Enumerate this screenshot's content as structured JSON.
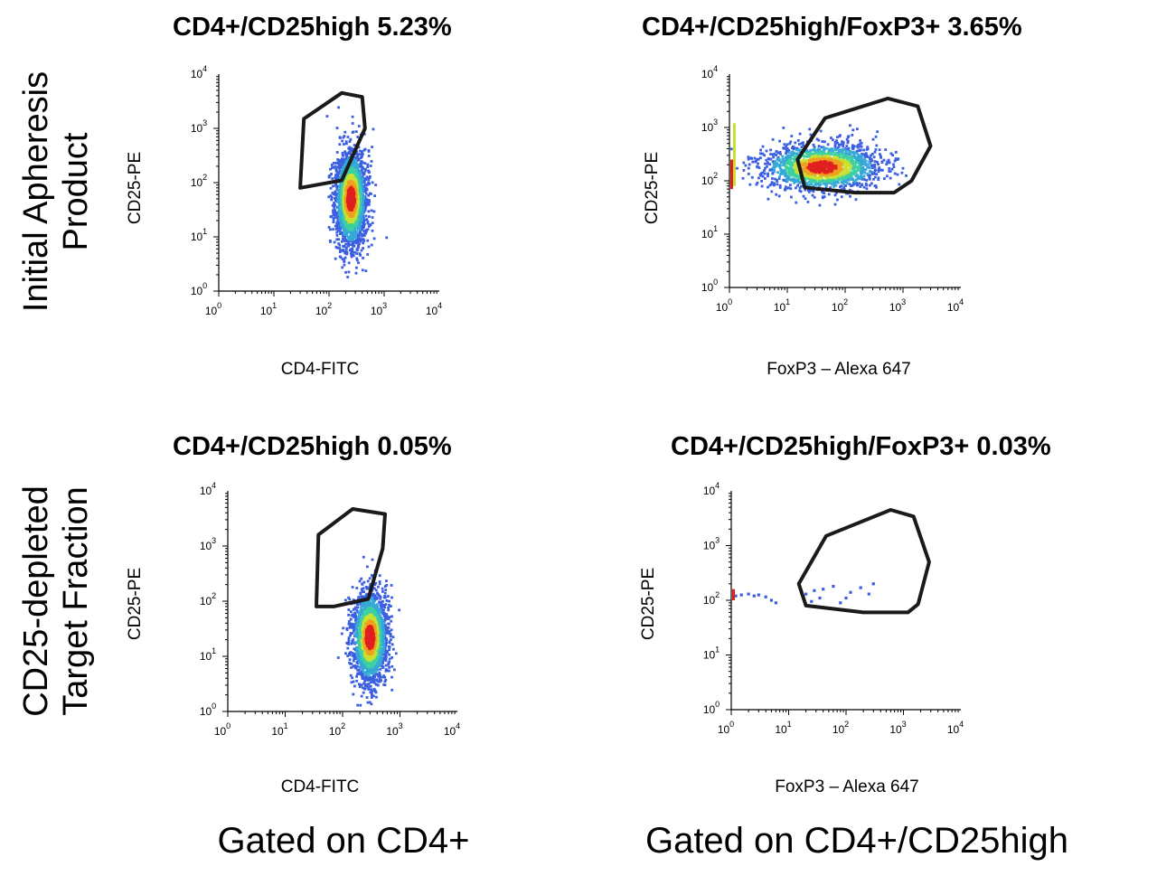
{
  "row_labels": [
    {
      "lines": [
        "Initial Apheresis",
        "Product"
      ]
    },
    {
      "lines": [
        "CD25-depleted",
        "Target Fraction"
      ]
    }
  ],
  "column_labels": [
    "Gated on CD4+",
    "Gated on CD4+/CD25high"
  ],
  "colors": {
    "gate": "#1a1a1a",
    "density": [
      "#3b5fe0",
      "#36a8d8",
      "#3ed0a0",
      "#c8e030",
      "#f0a020",
      "#e02020"
    ]
  },
  "chart_data": [
    {
      "id": "p1",
      "type": "scatter",
      "subtype": "flow-cytometry-density",
      "title": "CD4+/CD25high  5.23%",
      "xlabel": "CD4-FITC",
      "ylabel": "CD25-PE",
      "xscale": "log",
      "yscale": "log",
      "xlim": [
        1,
        10000
      ],
      "ylim": [
        1,
        10000
      ],
      "tick_labels": [
        "10^0",
        "10^1",
        "10^2",
        "10^3",
        "10^4"
      ],
      "population": {
        "center": [
          250,
          50
        ],
        "log_spread": [
          0.14,
          0.45
        ],
        "count": 2300
      },
      "gate": {
        "name": "CD4+/CD25high",
        "percent": 5.23,
        "vertices": [
          [
            30,
            80
          ],
          [
            35,
            1500
          ],
          [
            170,
            4500
          ],
          [
            400,
            3800
          ],
          [
            450,
            1000
          ],
          [
            170,
            110
          ]
        ]
      }
    },
    {
      "id": "p2",
      "type": "scatter",
      "subtype": "flow-cytometry-density",
      "title": "CD4+/CD25high/FoxP3+  3.65%",
      "xlabel": "FoxP3 – Alexa 647",
      "ylabel": "CD25-PE",
      "xscale": "log",
      "yscale": "log",
      "xlim": [
        1,
        10000
      ],
      "ylim": [
        1,
        10000
      ],
      "tick_labels": [
        "10^0",
        "10^1",
        "10^2",
        "10^3",
        "10^4"
      ],
      "population": {
        "center": [
          40,
          180
        ],
        "log_spread": [
          0.5,
          0.22
        ],
        "count": 1700
      },
      "gate": {
        "name": "FoxP3+",
        "percent": 3.65,
        "vertices": [
          [
            15,
            250
          ],
          [
            45,
            1500
          ],
          [
            550,
            3500
          ],
          [
            1800,
            2500
          ],
          [
            3000,
            450
          ],
          [
            1400,
            100
          ],
          [
            700,
            60
          ],
          [
            150,
            60
          ],
          [
            20,
            75
          ]
        ]
      }
    },
    {
      "id": "p3",
      "type": "scatter",
      "subtype": "flow-cytometry-density",
      "title": "CD4+/CD25high  0.05%",
      "xlabel": "CD4-FITC",
      "ylabel": "CD25-PE",
      "xscale": "log",
      "yscale": "log",
      "xlim": [
        1,
        10000
      ],
      "ylim": [
        1,
        10000
      ],
      "tick_labels": [
        "10^0",
        "10^1",
        "10^2",
        "10^3",
        "10^4"
      ],
      "population": {
        "center": [
          300,
          22
        ],
        "log_spread": [
          0.15,
          0.42
        ],
        "count": 2000
      },
      "gate": {
        "name": "CD4+/CD25high",
        "percent": 0.05,
        "vertices": [
          [
            38,
            1600
          ],
          [
            150,
            4700
          ],
          [
            550,
            3800
          ],
          [
            500,
            900
          ],
          [
            280,
            110
          ],
          [
            70,
            80
          ],
          [
            35,
            80
          ]
        ]
      }
    },
    {
      "id": "p4",
      "type": "scatter",
      "subtype": "flow-cytometry-density",
      "title": "CD4+/CD25high/FoxP3+  0.03%",
      "xlabel": "FoxP3 – Alexa 647",
      "ylabel": "CD25-PE",
      "xscale": "log",
      "yscale": "log",
      "xlim": [
        1,
        10000
      ],
      "ylim": [
        1,
        10000
      ],
      "tick_labels": [
        "10^0",
        "10^1",
        "10^2",
        "10^3",
        "10^4"
      ],
      "points": [
        [
          1.2,
          120
        ],
        [
          1.5,
          125
        ],
        [
          2,
          130
        ],
        [
          2.5,
          120
        ],
        [
          3,
          125
        ],
        [
          4,
          115
        ],
        [
          5,
          100
        ],
        [
          6,
          90
        ],
        [
          15,
          200
        ],
        [
          20,
          130
        ],
        [
          25,
          95
        ],
        [
          28,
          150
        ],
        [
          35,
          110
        ],
        [
          40,
          160
        ],
        [
          60,
          180
        ],
        [
          80,
          90
        ],
        [
          100,
          110
        ],
        [
          120,
          140
        ],
        [
          180,
          170
        ],
        [
          250,
          130
        ],
        [
          300,
          200
        ]
      ],
      "gate": {
        "name": "FoxP3+",
        "percent": 0.03,
        "vertices": [
          [
            15,
            200
          ],
          [
            45,
            1500
          ],
          [
            600,
            4500
          ],
          [
            1500,
            3400
          ],
          [
            2800,
            500
          ],
          [
            1800,
            85
          ],
          [
            1200,
            60
          ],
          [
            200,
            60
          ],
          [
            20,
            80
          ]
        ]
      }
    }
  ]
}
